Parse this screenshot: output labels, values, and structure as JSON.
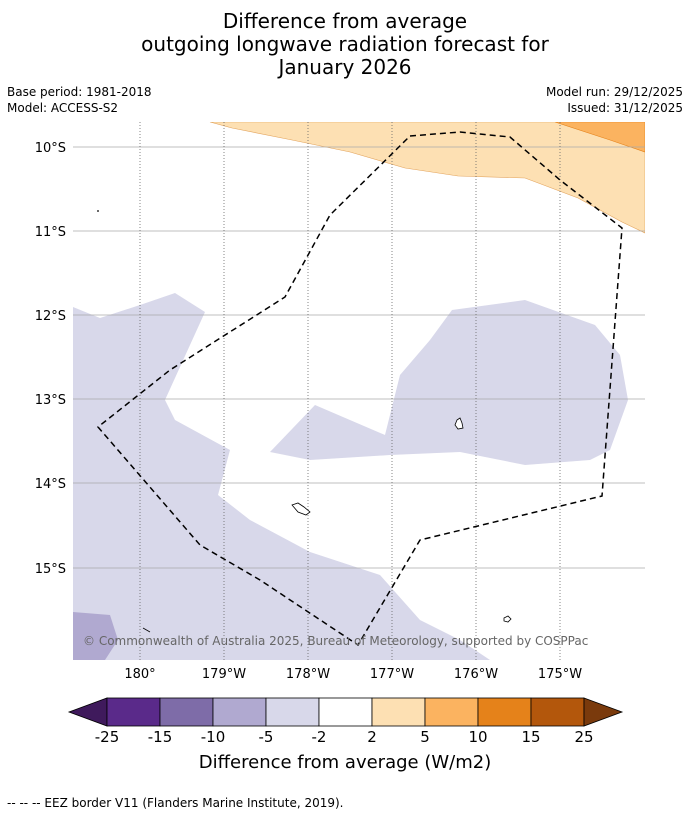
{
  "title": {
    "line1": "Difference from average",
    "line2": "outgoing longwave radiation forecast for",
    "line3": "January 2026"
  },
  "meta": {
    "base_period": "Base period: 1981-2018",
    "model": "Model: ACCESS-S2",
    "model_run": "Model run: 29/12/2025",
    "issued": "Issued: 31/12/2025"
  },
  "axes": {
    "lat_labels": [
      "10°S",
      "11°S",
      "12°S",
      "13°S",
      "14°S",
      "15°S"
    ],
    "lon_labels": [
      "180°",
      "179°W",
      "178°W",
      "177°W",
      "176°W",
      "175°W"
    ]
  },
  "copyright": "© Commonwealth of Australia 2025, Bureau of Meteorology, supported by COSPPac",
  "colorbar": {
    "ticks": [
      "-25",
      "-15",
      "-10",
      "-5",
      "-2",
      "2",
      "5",
      "10",
      "15",
      "25"
    ],
    "colors": [
      "#3f1a5c",
      "#5a2a8a",
      "#7e6ca8",
      "#b0a9d0",
      "#d8d8ea",
      "#ffffff",
      "#fde0b3",
      "#fbb360",
      "#e5821a",
      "#b3570c",
      "#7a3a0c"
    ],
    "title": "Difference from average (W/m2)"
  },
  "footnote": "--  --  -- EEZ border V11 (Flanders Marine Institute, 2019)."
}
